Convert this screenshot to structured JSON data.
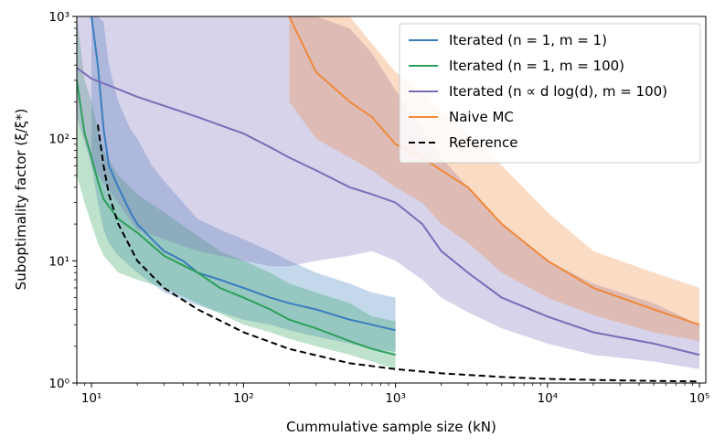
{
  "chart_data": {
    "type": "line",
    "xlabel": "Cummulative sample size (kN)",
    "ylabel": "Suboptimality factor (ξ/ξ*)",
    "xscale": "log",
    "yscale": "log",
    "xlim": [
      8,
      110000
    ],
    "ylim": [
      1,
      1000
    ],
    "x_ticks": [
      {
        "value": 10,
        "label": "10¹"
      },
      {
        "value": 100,
        "label": "10²"
      },
      {
        "value": 1000,
        "label": "10³"
      },
      {
        "value": 10000,
        "label": "10⁴"
      },
      {
        "value": 100000,
        "label": "10⁵"
      }
    ],
    "y_ticks": [
      {
        "value": 1,
        "label": "10⁰"
      },
      {
        "value": 10,
        "label": "10¹"
      },
      {
        "value": 100,
        "label": "10²"
      },
      {
        "value": 1000,
        "label": "10³"
      }
    ],
    "grid": false,
    "legend_position": "top-right",
    "series": [
      {
        "name": "Iterated (n = 1, m = 1)",
        "color": "#3a7dbf",
        "style": "solid",
        "x": [
          10,
          11,
          12,
          13,
          15,
          18,
          20,
          25,
          30,
          40,
          50,
          70,
          100,
          150,
          200,
          300,
          500,
          700,
          1000
        ],
        "y": [
          1000,
          400,
          120,
          60,
          40,
          25,
          20,
          15,
          12,
          10,
          8,
          7,
          6,
          5,
          4.5,
          4,
          3.3,
          3,
          2.7
        ],
        "upper": [
          1000,
          1000,
          900,
          400,
          200,
          120,
          100,
          60,
          45,
          30,
          22,
          18,
          15,
          12,
          10,
          8,
          6.5,
          5.5,
          5
        ],
        "lower": [
          60,
          30,
          18,
          14,
          11,
          9,
          8,
          6.5,
          5.5,
          4.8,
          4.3,
          3.8,
          3.3,
          3,
          2.7,
          2.4,
          2.1,
          1.9,
          1.8
        ]
      },
      {
        "name": "Iterated (n = 1, m = 100)",
        "color": "#2ca05a",
        "style": "solid",
        "x": [
          8,
          9,
          10,
          11,
          12,
          15,
          20,
          30,
          50,
          70,
          100,
          150,
          200,
          300,
          500,
          700,
          1000
        ],
        "y": [
          300,
          110,
          70,
          45,
          32,
          22,
          17,
          11,
          8,
          6,
          5,
          4,
          3.3,
          2.8,
          2.2,
          1.9,
          1.7
        ],
        "upper": [
          1000,
          300,
          200,
          120,
          80,
          50,
          35,
          25,
          16,
          12,
          10,
          8,
          6.5,
          5.5,
          4.5,
          3.5,
          3.2
        ],
        "lower": [
          50,
          30,
          20,
          14,
          11,
          8,
          7,
          6,
          4.5,
          3.7,
          3,
          2.6,
          2.3,
          2,
          1.7,
          1.5,
          1.3
        ]
      },
      {
        "name": "Iterated (n ∝ d log(d), m = 100)",
        "color": "#7b6cb8",
        "style": "solid",
        "x": [
          8,
          10,
          20,
          50,
          100,
          150,
          200,
          300,
          500,
          700,
          1000,
          1500,
          2000,
          3000,
          5000,
          10000,
          20000,
          50000,
          100000
        ],
        "y": [
          380,
          310,
          220,
          150,
          110,
          85,
          70,
          55,
          40,
          35,
          30,
          20,
          12,
          8,
          5,
          3.5,
          2.6,
          2.1,
          1.7
        ],
        "upper": [
          1000,
          1000,
          1000,
          1000,
          1000,
          1000,
          1000,
          1000,
          800,
          500,
          250,
          120,
          70,
          40,
          20,
          10,
          6.5,
          4.5,
          3
        ],
        "lower": [
          150,
          60,
          18,
          12,
          10,
          9,
          9,
          10,
          11,
          12,
          10,
          7,
          5,
          3.8,
          2.8,
          2.1,
          1.7,
          1.5,
          1.3
        ]
      },
      {
        "name": "Naive MC",
        "color": "#f0893c",
        "style": "solid",
        "x": [
          200,
          300,
          500,
          700,
          1000,
          1500,
          2000,
          3000,
          5000,
          10000,
          20000,
          50000,
          100000
        ],
        "y": [
          1000,
          350,
          200,
          150,
          90,
          70,
          55,
          40,
          20,
          10,
          6,
          4,
          3
        ],
        "upper": [
          1000,
          1000,
          1000,
          600,
          350,
          250,
          170,
          110,
          60,
          25,
          12,
          8,
          6
        ],
        "lower": [
          200,
          100,
          70,
          55,
          40,
          30,
          20,
          14,
          8,
          5,
          3.6,
          2.6,
          2.2
        ]
      },
      {
        "name": "Reference",
        "color": "#000000",
        "style": "dashed",
        "x": [
          11,
          12,
          13,
          15,
          20,
          30,
          50,
          100,
          200,
          500,
          1000,
          2000,
          5000,
          10000,
          20000,
          50000,
          100000
        ],
        "y": [
          130,
          60,
          35,
          20,
          10,
          6,
          4,
          2.6,
          1.9,
          1.45,
          1.3,
          1.2,
          1.12,
          1.08,
          1.06,
          1.04,
          1.03
        ]
      }
    ]
  }
}
